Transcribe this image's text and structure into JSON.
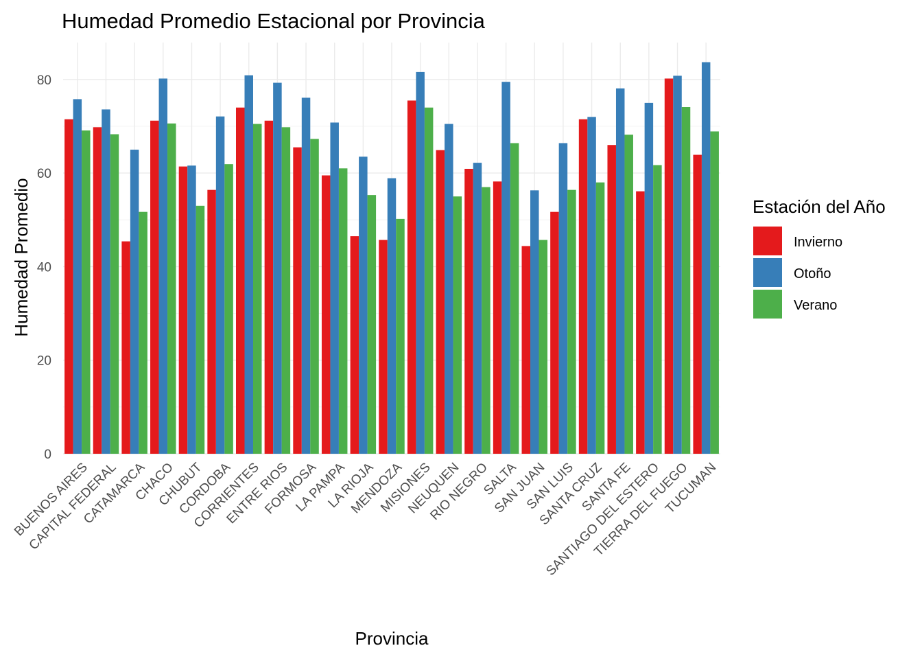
{
  "chart_data": {
    "type": "bar",
    "title": "Humedad Promedio Estacional por Provincia",
    "xlabel": "Provincia",
    "ylabel": "Humedad Promedio",
    "ylim": [
      0,
      88
    ],
    "yticks": [
      0,
      20,
      40,
      60,
      80
    ],
    "grid": true,
    "legend": {
      "title": "Estación del Año",
      "position": "right"
    },
    "categories": [
      "BUENOS AIRES",
      "CAPITAL FEDERAL",
      "CATAMARCA",
      "CHACO",
      "CHUBUT",
      "CORDOBA",
      "CORRIENTES",
      "ENTRE RIOS",
      "FORMOSA",
      "LA PAMPA",
      "LA RIOJA",
      "MENDOZA",
      "MISIONES",
      "NEUQUEN",
      "RIO NEGRO",
      "SALTA",
      "SAN JUAN",
      "SAN LUIS",
      "SANTA CRUZ",
      "SANTA FE",
      "SANTIAGO DEL ESTERO",
      "TIERRA DEL FUEGO",
      "TUCUMAN"
    ],
    "series": [
      {
        "name": "Invierno",
        "color": "#e41a1c",
        "values": [
          71.5,
          69.8,
          45.4,
          71.2,
          61.4,
          56.4,
          74.0,
          71.2,
          65.5,
          59.5,
          46.5,
          45.7,
          75.5,
          64.9,
          60.9,
          58.2,
          44.4,
          51.7,
          71.5,
          66.0,
          56.1,
          80.2,
          63.9
        ]
      },
      {
        "name": "Otoño",
        "color": "#377eb8",
        "values": [
          75.8,
          73.6,
          65.0,
          80.2,
          61.6,
          72.1,
          80.9,
          79.3,
          76.1,
          70.8,
          63.5,
          58.9,
          81.6,
          70.5,
          62.2,
          79.5,
          56.3,
          66.4,
          72.0,
          78.1,
          75.0,
          80.8,
          83.7
        ]
      },
      {
        "name": "Verano",
        "color": "#4daf4a",
        "values": [
          69.1,
          68.3,
          51.7,
          70.6,
          53.0,
          61.9,
          70.5,
          69.8,
          67.3,
          61.0,
          55.3,
          50.2,
          74.0,
          55.0,
          57.0,
          66.4,
          45.7,
          56.4,
          58.0,
          68.2,
          61.7,
          74.1,
          68.9
        ]
      }
    ]
  }
}
